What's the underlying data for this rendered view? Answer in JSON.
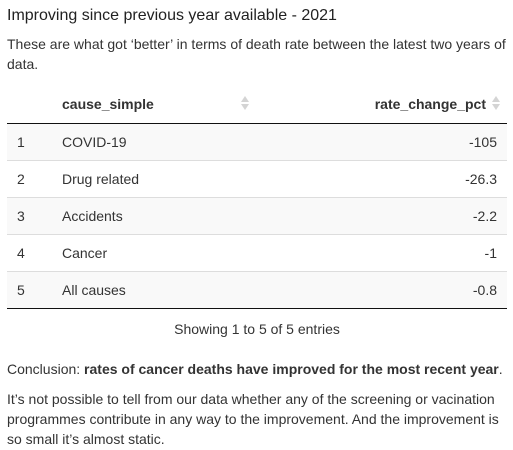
{
  "heading": "Improving since previous year available - 2021",
  "intro": "These are what got ‘better’ in terms of death rate between the latest two years of data.",
  "table": {
    "columns": [
      "",
      "cause_simple",
      "rate_change_pct"
    ],
    "sort_icon": "sort-both-icon",
    "rows": [
      {
        "index": "1",
        "cause": "COVID-19",
        "rate": "-105"
      },
      {
        "index": "2",
        "cause": "Drug related",
        "rate": "-26.3"
      },
      {
        "index": "3",
        "cause": "Accidents",
        "rate": "-2.2"
      },
      {
        "index": "4",
        "cause": "Cancer",
        "rate": "-1"
      },
      {
        "index": "5",
        "cause": "All causes",
        "rate": "-0.8"
      }
    ],
    "info": "Showing 1 to 5 of 5 entries"
  },
  "conclusion": {
    "prefix": "Conclusion: ",
    "bold": "rates of cancer deaths have improved for the most recent year",
    "suffix": "."
  },
  "paragraph": "It’s not possible to tell from our data whether any of the screening or vacination programmes contribute in any way to the improvement. And the improvement is so small it’s almost static.",
  "colors": {
    "text": "#333333",
    "row_stripe": "#f9f9f9",
    "border": "#111111",
    "row_border": "#dddddd",
    "sort_icon": "#d4d4d4"
  }
}
